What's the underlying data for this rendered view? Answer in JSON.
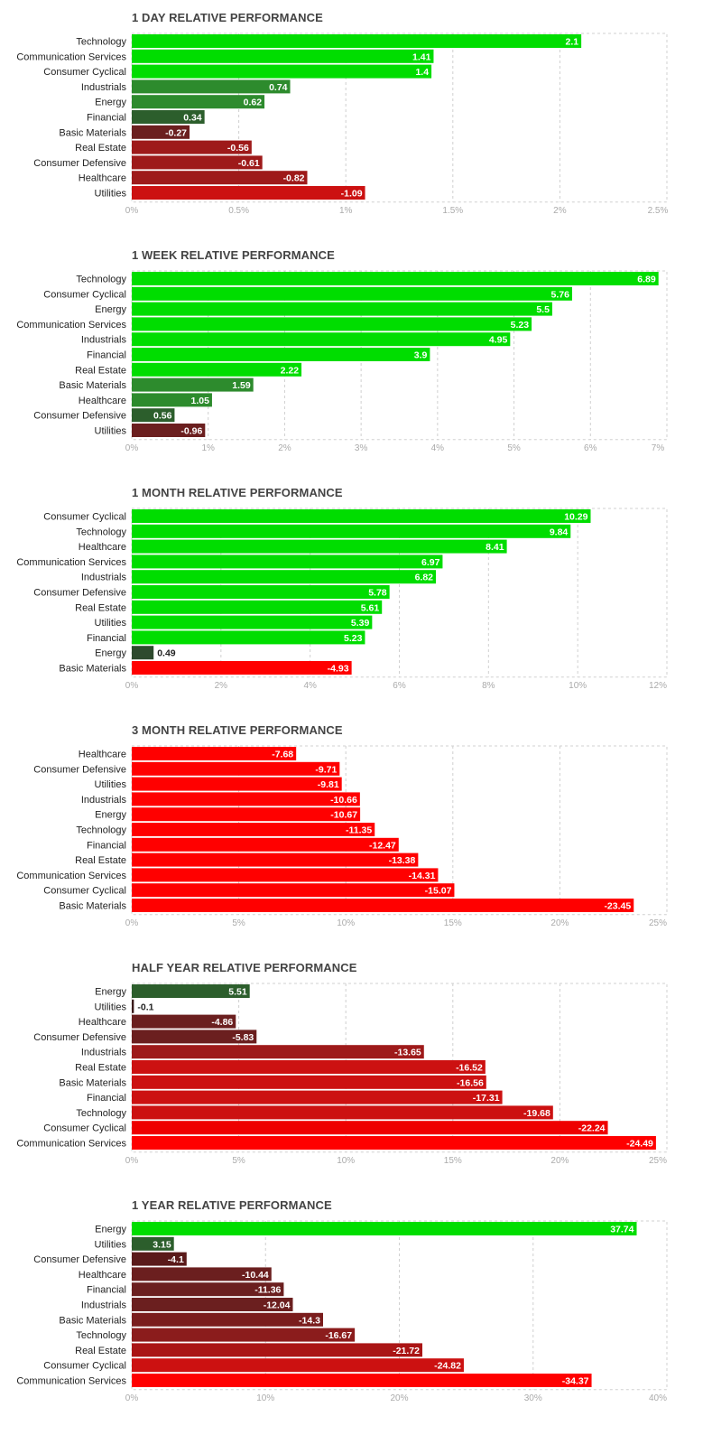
{
  "colors": {
    "strong_gain": "#00dd00",
    "mid_gain": "#2d8b2d",
    "weak_gain": "#2c5e2c",
    "weak_loss": "#6b1f1f",
    "mid_loss": "#9e1a1a",
    "strong_loss": "#ff0000",
    "neutral": "#2e4a2e"
  },
  "chart_data": [
    {
      "type": "bar",
      "title": "1 DAY RELATIVE PERFORMANCE",
      "categories": [
        "Technology",
        "Communication Services",
        "Consumer Cyclical",
        "Industrials",
        "Energy",
        "Financial",
        "Basic Materials",
        "Real Estate",
        "Consumer Defensive",
        "Healthcare",
        "Utilities"
      ],
      "values": [
        2.1,
        1.41,
        1.4,
        0.74,
        0.62,
        0.34,
        -0.27,
        -0.56,
        -0.61,
        -0.82,
        -1.09
      ],
      "value_labels": [
        "2.1",
        "1.41",
        "1.4",
        "0.74",
        "0.62",
        "0.34",
        "-0.27",
        "-0.56",
        "-0.61",
        "-0.82",
        "-1.09"
      ],
      "colors": [
        "#00dd00",
        "#00dd00",
        "#00dd00",
        "#2d8b2d",
        "#2d8b2d",
        "#2c5e2c",
        "#6b1f1f",
        "#9e1a1a",
        "#9e1a1a",
        "#9e1a1a",
        "#cc1111"
      ],
      "xticks": [
        "0%",
        "0.5%",
        "1%",
        "1.5%",
        "2%",
        "2.5%"
      ],
      "xlim": [
        0,
        2.5
      ]
    },
    {
      "type": "bar",
      "title": "1 WEEK RELATIVE PERFORMANCE",
      "categories": [
        "Technology",
        "Consumer Cyclical",
        "Energy",
        "Communication Services",
        "Industrials",
        "Financial",
        "Real Estate",
        "Basic Materials",
        "Healthcare",
        "Consumer Defensive",
        "Utilities"
      ],
      "values": [
        6.89,
        5.76,
        5.5,
        5.23,
        4.95,
        3.9,
        2.22,
        1.59,
        1.05,
        0.56,
        -0.96
      ],
      "value_labels": [
        "6.89",
        "5.76",
        "5.5",
        "5.23",
        "4.95",
        "3.9",
        "2.22",
        "1.59",
        "1.05",
        "0.56",
        "-0.96"
      ],
      "colors": [
        "#00dd00",
        "#00dd00",
        "#00dd00",
        "#00dd00",
        "#00dd00",
        "#00dd00",
        "#00dd00",
        "#2d8b2d",
        "#2d8b2d",
        "#2c5e2c",
        "#6b1f1f"
      ],
      "xticks": [
        "0%",
        "1%",
        "2%",
        "3%",
        "4%",
        "5%",
        "6%",
        "7%"
      ],
      "xlim": [
        0,
        7
      ]
    },
    {
      "type": "bar",
      "title": "1 MONTH RELATIVE PERFORMANCE",
      "categories": [
        "Consumer Cyclical",
        "Technology",
        "Healthcare",
        "Communication Services",
        "Industrials",
        "Consumer Defensive",
        "Real Estate",
        "Utilities",
        "Financial",
        "Energy",
        "Basic Materials"
      ],
      "values": [
        10.29,
        9.84,
        8.41,
        6.97,
        6.82,
        5.78,
        5.61,
        5.39,
        5.23,
        0.49,
        -4.93
      ],
      "value_labels": [
        "10.29",
        "9.84",
        "8.41",
        "6.97",
        "6.82",
        "5.78",
        "5.61",
        "5.39",
        "5.23",
        "0.49",
        "-4.93"
      ],
      "colors": [
        "#00dd00",
        "#00dd00",
        "#00dd00",
        "#00dd00",
        "#00dd00",
        "#00dd00",
        "#00dd00",
        "#00dd00",
        "#00dd00",
        "#2e4a2e",
        "#ff0000"
      ],
      "xticks": [
        "0%",
        "2%",
        "4%",
        "6%",
        "8%",
        "10%",
        "12%"
      ],
      "xlim": [
        0,
        12
      ]
    },
    {
      "type": "bar",
      "title": "3 MONTH RELATIVE PERFORMANCE",
      "categories": [
        "Healthcare",
        "Consumer Defensive",
        "Utilities",
        "Industrials",
        "Energy",
        "Technology",
        "Financial",
        "Real Estate",
        "Communication Services",
        "Consumer Cyclical",
        "Basic Materials"
      ],
      "values": [
        -7.68,
        -9.71,
        -9.81,
        -10.66,
        -10.67,
        -11.35,
        -12.47,
        -13.38,
        -14.31,
        -15.07,
        -23.45
      ],
      "value_labels": [
        "-7.68",
        "-9.71",
        "-9.81",
        "-10.66",
        "-10.67",
        "-11.35",
        "-12.47",
        "-13.38",
        "-14.31",
        "-15.07",
        "-23.45"
      ],
      "colors": [
        "#ff0000",
        "#ff0000",
        "#ff0000",
        "#ff0000",
        "#ff0000",
        "#ff0000",
        "#ff0000",
        "#ff0000",
        "#ff0000",
        "#ff0000",
        "#ff0000"
      ],
      "xticks": [
        "0%",
        "5%",
        "10%",
        "15%",
        "20%",
        "25%"
      ],
      "xlim": [
        0,
        25
      ]
    },
    {
      "type": "bar",
      "title": "HALF YEAR RELATIVE PERFORMANCE",
      "categories": [
        "Energy",
        "Utilities",
        "Healthcare",
        "Consumer Defensive",
        "Industrials",
        "Real Estate",
        "Basic Materials",
        "Financial",
        "Technology",
        "Consumer Cyclical",
        "Communication Services"
      ],
      "values": [
        5.51,
        -0.1,
        -4.86,
        -5.83,
        -13.65,
        -16.52,
        -16.56,
        -17.31,
        -19.68,
        -22.24,
        -24.49
      ],
      "value_labels": [
        "5.51",
        "-0.1",
        "-4.86",
        "-5.83",
        "-13.65",
        "-16.52",
        "-16.56",
        "-17.31",
        "-19.68",
        "-22.24",
        "-24.49"
      ],
      "colors": [
        "#2c5e2c",
        "#3a1a1a",
        "#6b1f1f",
        "#6b1f1f",
        "#9e1a1a",
        "#cc1111",
        "#cc1111",
        "#cc1111",
        "#cc1111",
        "#ee0000",
        "#ff0000"
      ],
      "xticks": [
        "0%",
        "5%",
        "10%",
        "15%",
        "20%",
        "25%"
      ],
      "xlim": [
        0,
        25
      ]
    },
    {
      "type": "bar",
      "title": "1 YEAR RELATIVE PERFORMANCE",
      "categories": [
        "Energy",
        "Utilities",
        "Consumer Defensive",
        "Healthcare",
        "Financial",
        "Industrials",
        "Basic Materials",
        "Technology",
        "Real Estate",
        "Consumer Cyclical",
        "Communication Services"
      ],
      "values": [
        37.74,
        3.15,
        -4.1,
        -10.44,
        -11.36,
        -12.04,
        -14.3,
        -16.67,
        -21.72,
        -24.82,
        -34.37
      ],
      "value_labels": [
        "37.74",
        "3.15",
        "-4.1",
        "-10.44",
        "-11.36",
        "-12.04",
        "-14.3",
        "-16.67",
        "-21.72",
        "-24.82",
        "-34.37"
      ],
      "colors": [
        "#00dd00",
        "#2c5e2c",
        "#5a1a1a",
        "#6b1f1f",
        "#6b1f1f",
        "#6b1f1f",
        "#7a1c1c",
        "#8b1c1c",
        "#aa1515",
        "#cc1111",
        "#ff0000"
      ],
      "xticks": [
        "0%",
        "10%",
        "20%",
        "30%",
        "40%"
      ],
      "xlim": [
        0,
        40
      ]
    }
  ]
}
